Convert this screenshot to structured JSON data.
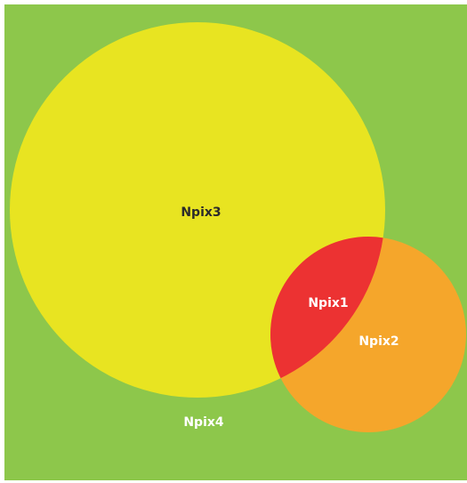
{
  "diagram": {
    "type": "venn",
    "background_color": "#8DC74B",
    "regions": {
      "npix3": {
        "label": "Npix3",
        "fill": "#E8E421",
        "text_color": "#2b2b2b"
      },
      "npix2": {
        "label": "Npix2",
        "fill": "#F5A62B",
        "text_color": "#ffffff"
      },
      "npix1": {
        "label": "Npix1",
        "fill": "#EC3232",
        "text_color": "#ffffff"
      },
      "npix4": {
        "label": "Npix4",
        "text_color": "#ffffff"
      }
    }
  }
}
